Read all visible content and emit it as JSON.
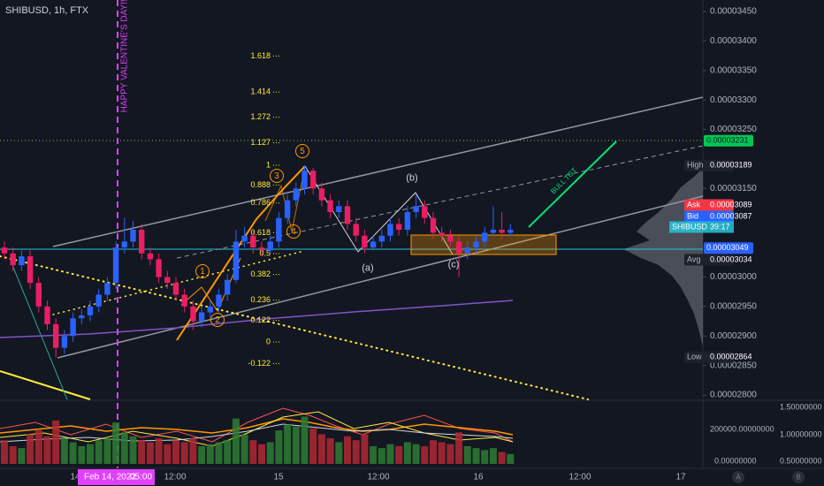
{
  "chart_data": {
    "type": "candlestick",
    "title": "SHIBUSD, 1h, FTX",
    "annotation": "HAPPY VALENTINE'S DAY!!!",
    "target_label": "BULL TGT",
    "up_color": "#2962ff",
    "down_color": "#e91e63",
    "volume_up_color": "#2e7d32",
    "volume_down_color": "#b22833",
    "grid": false,
    "ylim": [
      2.8e-05,
      3.45e-05
    ],
    "yticks": [
      {
        "value": 3.45e-05,
        "label": "0.00003450"
      },
      {
        "value": 3.4e-05,
        "label": "0.00003400"
      },
      {
        "value": 3.35e-05,
        "label": "0.00003350"
      },
      {
        "value": 3.3e-05,
        "label": "0.00003300"
      },
      {
        "value": 3.25e-05,
        "label": "0.00003250"
      },
      {
        "value": 3.15e-05,
        "label": "0.00003150"
      },
      {
        "value": 3e-05,
        "label": "0.00003000"
      },
      {
        "value": 2.95e-05,
        "label": "0.00002950"
      },
      {
        "value": 2.9e-05,
        "label": "0.00002900"
      },
      {
        "value": 2.85e-05,
        "label": "0.00002850"
      },
      {
        "value": 2.8e-05,
        "label": "0.00002800"
      }
    ],
    "open": [
      3.05e-05,
      3.04e-05,
      3.02e-05,
      3.035e-05,
      2.99e-05,
      2.95e-05,
      2.92e-05,
      2.88e-05,
      2.9e-05,
      2.93e-05,
      2.935e-05,
      2.95e-05,
      2.97e-05,
      2.99e-05,
      3.05e-05,
      3.06e-05,
      3.08e-05,
      3.04e-05,
      3.03e-05,
      3e-05,
      2.99e-05,
      2.97e-05,
      2.95e-05,
      2.925e-05,
      2.94e-05,
      2.95e-05,
      2.97e-05,
      2.995e-05,
      3.06e-05,
      3.07e-05,
      3.05e-05,
      3.045e-05,
      3.06e-05,
      3.1e-05,
      3.13e-05,
      3.15e-05,
      3.18e-05,
      3.15e-05,
      3.13e-05,
      3.11e-05,
      3.12e-05,
      3.09e-05,
      3.07e-05,
      3.05e-05,
      3.06e-05,
      3.07e-05,
      3.09e-05,
      3.08e-05,
      3.11e-05,
      3.12e-05,
      3.1e-05,
      3.075e-05,
      3.07e-05,
      3.06e-05,
      3.04e-05,
      3.05e-05,
      3.06e-05,
      3.075e-05,
      3.08e-05,
      3.075e-05
    ],
    "high": [
      3.06e-05,
      3.05e-05,
      3.045e-05,
      3.045e-05,
      3e-05,
      2.96e-05,
      2.93e-05,
      2.91e-05,
      2.94e-05,
      2.945e-05,
      2.96e-05,
      2.98e-05,
      3e-05,
      3.06e-05,
      3.1e-05,
      3.095e-05,
      3.09e-05,
      3.05e-05,
      3.04e-05,
      3.01e-05,
      3e-05,
      2.98e-05,
      2.96e-05,
      2.95e-05,
      2.96e-05,
      2.98e-05,
      3.005e-05,
      3.08e-05,
      3.085e-05,
      3.08e-05,
      3.06e-05,
      3.07e-05,
      3.11e-05,
      3.14e-05,
      3.16e-05,
      3.189e-05,
      3.185e-05,
      3.16e-05,
      3.14e-05,
      3.13e-05,
      3.13e-05,
      3.1e-05,
      3.08e-05,
      3.07e-05,
      3.08e-05,
      3.1e-05,
      3.1e-05,
      3.12e-05,
      3.14e-05,
      3.13e-05,
      3.11e-05,
      3.085e-05,
      3.08e-05,
      3.07e-05,
      3.06e-05,
      3.07e-05,
      3.085e-05,
      3.12e-05,
      3.11e-05,
      3.09e-05
    ],
    "low": [
      3.03e-05,
      3.01e-05,
      3.01e-05,
      2.98e-05,
      2.94e-05,
      2.91e-05,
      2.864e-05,
      2.87e-05,
      2.89e-05,
      2.92e-05,
      2.925e-05,
      2.94e-05,
      2.96e-05,
      2.98e-05,
      3.04e-05,
      3.05e-05,
      3.03e-05,
      3.02e-05,
      2.99e-05,
      2.98e-05,
      2.96e-05,
      2.94e-05,
      2.91e-05,
      2.915e-05,
      2.93e-05,
      2.94e-05,
      2.96e-05,
      2.99e-05,
      3.05e-05,
      3.04e-05,
      3.035e-05,
      3.04e-05,
      3.05e-05,
      3.09e-05,
      3.12e-05,
      3.14e-05,
      3.14e-05,
      3.12e-05,
      3.1e-05,
      3.1e-05,
      3.08e-05,
      3.06e-05,
      3.04e-05,
      3.045e-05,
      3.05e-05,
      3.06e-05,
      3.07e-05,
      3.07e-05,
      3.1e-05,
      3.09e-05,
      3.065e-05,
      3.06e-05,
      3.05e-05,
      3e-05,
      3.03e-05,
      3.04e-05,
      3.05e-05,
      3.07e-05,
      3.065e-05,
      3.07e-05
    ],
    "close": [
      3.04e-05,
      3.02e-05,
      3.035e-05,
      2.99e-05,
      2.95e-05,
      2.92e-05,
      2.88e-05,
      2.9e-05,
      2.93e-05,
      2.935e-05,
      2.95e-05,
      2.97e-05,
      2.99e-05,
      3.05e-05,
      3.06e-05,
      3.08e-05,
      3.04e-05,
      3.03e-05,
      3e-05,
      2.99e-05,
      2.97e-05,
      2.95e-05,
      2.925e-05,
      2.94e-05,
      2.95e-05,
      2.97e-05,
      2.995e-05,
      3.06e-05,
      3.07e-05,
      3.05e-05,
      3.045e-05,
      3.06e-05,
      3.1e-05,
      3.13e-05,
      3.15e-05,
      3.18e-05,
      3.15e-05,
      3.13e-05,
      3.11e-05,
      3.12e-05,
      3.09e-05,
      3.07e-05,
      3.05e-05,
      3.06e-05,
      3.07e-05,
      3.09e-05,
      3.08e-05,
      3.11e-05,
      3.12e-05,
      3.1e-05,
      3.075e-05,
      3.07e-05,
      3.06e-05,
      3.04e-05,
      3.05e-05,
      3.06e-05,
      3.075e-05,
      3.08e-05,
      3.075e-05,
      3.08e-05
    ],
    "volume": [
      120000,
      90000,
      80000,
      150000,
      170000,
      140000,
      220000,
      130000,
      110000,
      90000,
      100000,
      120000,
      130000,
      210000,
      160000,
      140000,
      120000,
      110000,
      130000,
      100000,
      120000,
      110000,
      130000,
      90000,
      100000,
      110000,
      120000,
      230000,
      150000,
      120000,
      100000,
      110000,
      170000,
      200000,
      190000,
      240000,
      180000,
      150000,
      130000,
      110000,
      140000,
      120000,
      150000,
      90000,
      80000,
      100000,
      90000,
      110000,
      100000,
      90000,
      120000,
      110000,
      100000,
      160000,
      90000,
      80000,
      70000,
      80000,
      60000,
      50000
    ],
    "volume_lim": [
      0,
      300000
    ],
    "volume_axis": [
      "1.50000000",
      "200000.00000000",
      "1.00000000",
      "0.00000000",
      "0.50000000"
    ],
    "fib_levels": [
      1.618,
      1.414,
      1.272,
      1.127,
      1,
      0.888,
      0.786,
      0.618,
      0.5,
      0.382,
      0.236,
      0.122,
      0,
      -0.122
    ],
    "wave_labels": [
      "1",
      "2",
      "3",
      "4",
      "5",
      "(a)",
      "(b)",
      "(c)"
    ],
    "price_markers": [
      {
        "value": 3.231e-05,
        "label": "0.00003231"
      },
      {
        "name": "High",
        "value": 3.189e-05,
        "label": "0.00003189"
      },
      {
        "name": "Ask",
        "value": 3.089e-05,
        "label": "0.00003089"
      },
      {
        "name": "Bid",
        "value": 3.087e-05,
        "label": "0.00003087"
      },
      {
        "value": 3.049e-05,
        "label": "0.00003049"
      },
      {
        "name": "Avg",
        "value": 3.034e-05,
        "label": "0.00003034"
      },
      {
        "name": "Low",
        "value": 2.864e-05,
        "label": "0.00002864"
      }
    ],
    "symbol_tag": {
      "name": "SHIBUSD",
      "timer": "39:17"
    },
    "x_labels": [
      "14",
      "12:00",
      "15",
      "12:00",
      "16",
      "12:00",
      "17"
    ],
    "crosshair": {
      "date": "Feb 14, 2022",
      "time": "05:00"
    },
    "buttons": [
      "A",
      "B"
    ]
  }
}
